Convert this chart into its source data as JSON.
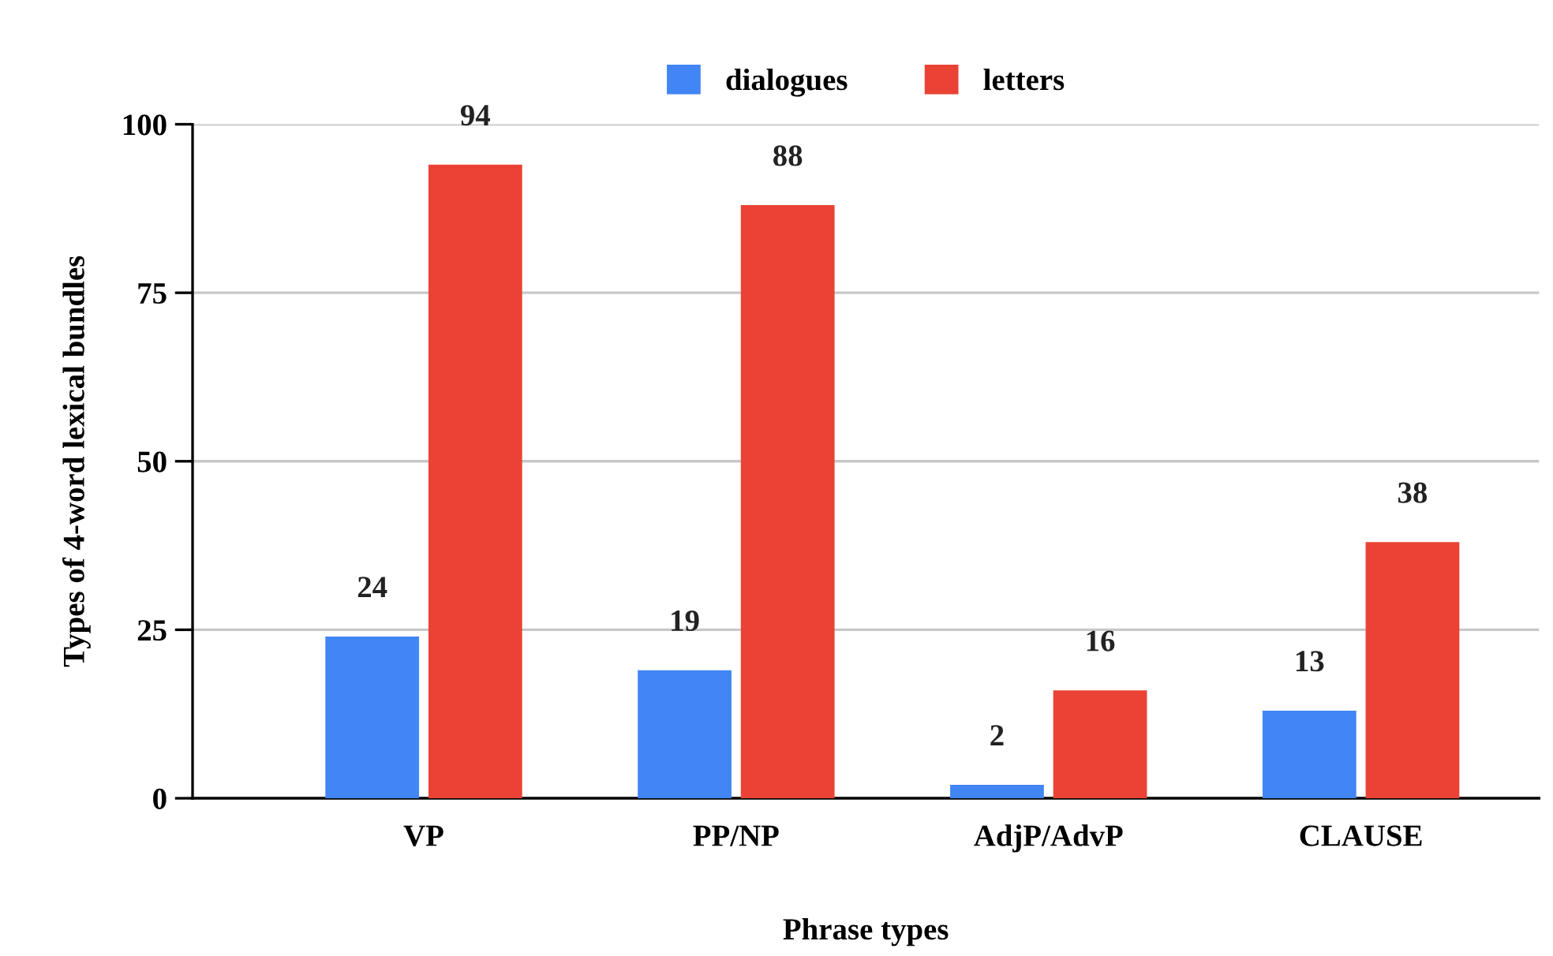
{
  "chart_data": {
    "type": "bar",
    "xlabel": "Phrase types",
    "ylabel": "Types of 4-word lexical bundles",
    "categories": [
      "VP",
      "PP/NP",
      "AdjP/AdvP",
      "CLAUSE"
    ],
    "series": [
      {
        "name": "dialogues",
        "color": "#4285f4",
        "values": [
          24,
          19,
          2,
          13
        ]
      },
      {
        "name": "letters",
        "color": "#ea4335",
        "values": [
          94,
          88,
          16,
          38
        ]
      }
    ],
    "ylim": [
      0,
      100
    ],
    "yticks": [
      0,
      25,
      50,
      75,
      100
    ],
    "grid": "y",
    "legend": "top",
    "data_labels": true
  }
}
